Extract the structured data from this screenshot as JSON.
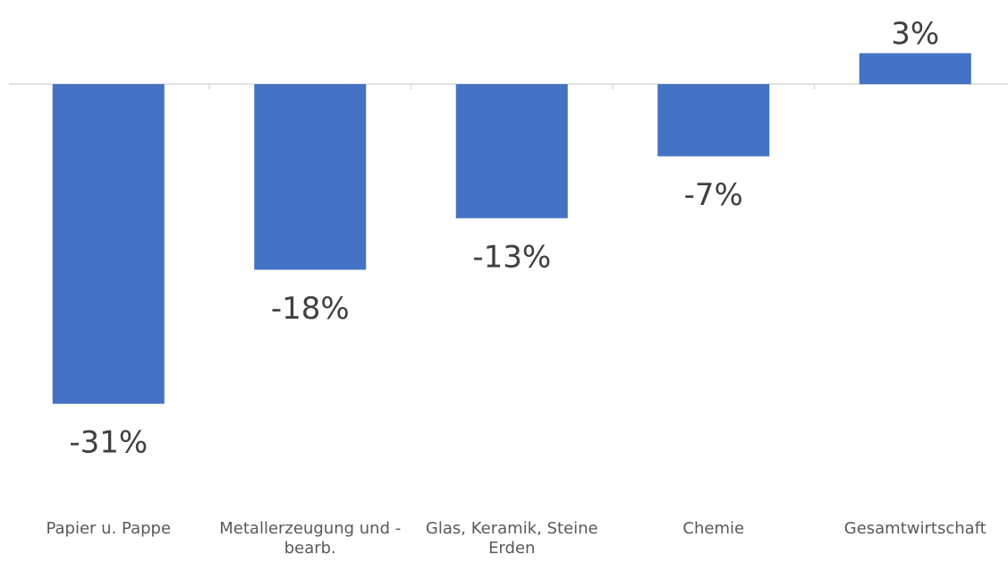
{
  "chart_data": {
    "type": "bar",
    "categories": [
      "Papier u. Pappe",
      "Metallerzeugung und -bearb.",
      "Glas, Keramik, Steine Erden",
      "Chemie",
      "Gesamtwirtschaft"
    ],
    "values": [
      -31,
      -18,
      -13,
      -7,
      3
    ],
    "value_labels": [
      "-31%",
      "-18%",
      "-13%",
      "-7%",
      "3%"
    ],
    "color": "#4472c4"
  }
}
